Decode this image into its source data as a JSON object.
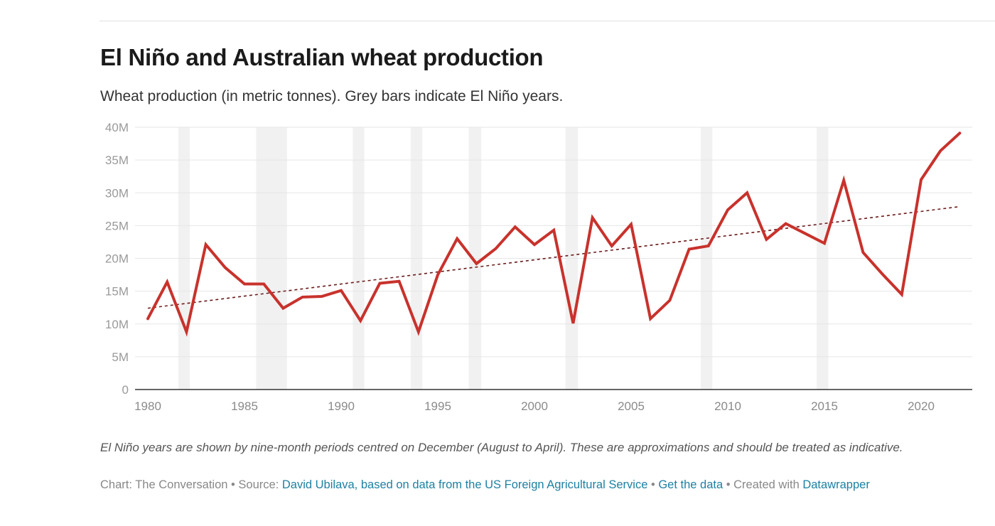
{
  "chart_data": {
    "type": "line",
    "title": "El Niño and Australian wheat production",
    "subtitle": "Wheat production (in metric tonnes). Grey bars indicate El Niño years.",
    "xlabel": "",
    "ylabel": "",
    "xlim": [
      1979.3,
      2022.6
    ],
    "ylim": [
      0,
      40000000
    ],
    "grid": true,
    "x_ticks": [
      1980,
      1985,
      1990,
      1995,
      2000,
      2005,
      2010,
      2015,
      2020
    ],
    "x_tick_labels": [
      "1980",
      "1985",
      "1990",
      "1995",
      "2000",
      "2005",
      "2010",
      "2015",
      "2020"
    ],
    "y_ticks": [
      0,
      5000000,
      10000000,
      15000000,
      20000000,
      25000000,
      30000000,
      35000000,
      40000000
    ],
    "y_tick_labels": [
      "0",
      "5M",
      "10M",
      "15M",
      "20M",
      "25M",
      "30M",
      "35M",
      "40M"
    ],
    "x": [
      1980,
      1981,
      1982,
      1983,
      1984,
      1985,
      1986,
      1987,
      1988,
      1989,
      1990,
      1991,
      1992,
      1993,
      1994,
      1995,
      1996,
      1997,
      1998,
      1999,
      2000,
      2001,
      2002,
      2003,
      2004,
      2005,
      2006,
      2007,
      2008,
      2009,
      2010,
      2011,
      2012,
      2013,
      2014,
      2015,
      2016,
      2017,
      2018,
      2019,
      2020,
      2021,
      2022
    ],
    "series": [
      {
        "name": "Wheat production",
        "color": "#c8322c",
        "values": [
          10800000,
          16400000,
          8800000,
          22100000,
          18600000,
          16100000,
          16100000,
          12400000,
          14100000,
          14200000,
          15100000,
          10500000,
          16200000,
          16500000,
          8800000,
          17500000,
          23000000,
          19200000,
          21500000,
          24800000,
          22100000,
          24300000,
          10100000,
          26200000,
          21900000,
          25200000,
          10800000,
          13600000,
          21400000,
          21900000,
          27400000,
          30000000,
          22900000,
          25300000,
          23800000,
          22300000,
          31900000,
          20900000,
          17600000,
          14500000,
          32000000,
          36400000,
          39100000
        ]
      },
      {
        "name": "Trend",
        "color": "#6b1a1a",
        "style": "dotted",
        "x": [
          1980,
          2022
        ],
        "values": [
          12400000,
          27900000
        ]
      }
    ],
    "shaded_ranges": {
      "label": "El Niño years",
      "color": "#f1f1f1",
      "ranges": [
        [
          1981.58,
          1982.17
        ],
        [
          1985.6,
          1987.2
        ],
        [
          1990.6,
          1991.2
        ],
        [
          1993.6,
          1994.2
        ],
        [
          1996.6,
          1997.25
        ],
        [
          2001.6,
          2002.25
        ],
        [
          2008.6,
          2009.2
        ],
        [
          2014.6,
          2015.2
        ]
      ]
    }
  },
  "notes": "El Niño years are shown by nine-month periods centred on December (August to April). These are approximations and should be treated as indicative.",
  "footer": {
    "chart_credit": "Chart: The Conversation",
    "sep": " • ",
    "source_label": "Source: ",
    "source_link": "David Ubilava, based on data from the US Foreign Agricultural Service",
    "get_data": "Get the data",
    "created_label": "Created with ",
    "created_link": "Datawrapper"
  }
}
